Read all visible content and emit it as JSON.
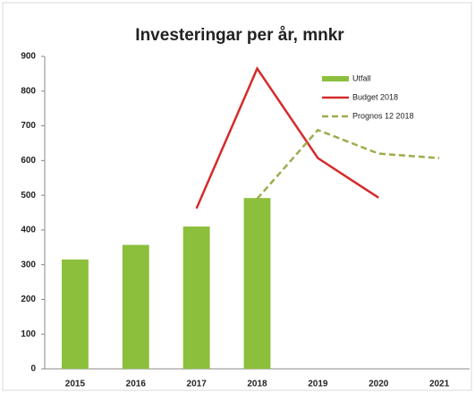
{
  "chart_data": {
    "type": "bar",
    "title": "Investeringar per år, mnkr",
    "categories": [
      "2015",
      "2016",
      "2017",
      "2018",
      "2019",
      "2020",
      "2021"
    ],
    "series": [
      {
        "name": "Utfall",
        "type": "bar",
        "color": "#8cbf3c",
        "values": [
          315,
          357,
          410,
          492,
          null,
          null,
          null
        ]
      },
      {
        "name": "Budget 2018",
        "type": "line",
        "color": "#d42b2b",
        "style": "solid",
        "values": [
          null,
          null,
          462,
          865,
          607,
          493,
          null
        ]
      },
      {
        "name": "Prognos 12 2018",
        "type": "line",
        "color": "#9aae4c",
        "style": "dashed",
        "values": [
          null,
          null,
          null,
          490,
          688,
          620,
          607
        ]
      }
    ],
    "ylim": [
      0,
      900
    ],
    "yticks": [
      0,
      100,
      200,
      300,
      400,
      500,
      600,
      700,
      800,
      900
    ],
    "grid": false,
    "legend": "top-right"
  }
}
